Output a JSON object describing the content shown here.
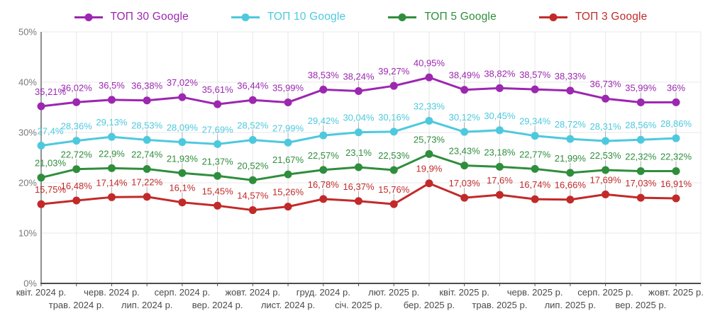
{
  "chart_data": {
    "type": "line",
    "title": "",
    "xlabel": "",
    "ylabel": "",
    "ylim": [
      0,
      50
    ],
    "grid": true,
    "legend_position": "top",
    "y_ticks": [
      "0%",
      "10%",
      "20%",
      "30%",
      "40%",
      "50%"
    ],
    "x": [
      "квіт. 2024 р.",
      "трав. 2024 р.",
      "черв. 2024 р.",
      "лип. 2024 р.",
      "серп. 2024 р.",
      "вер. 2024 р.",
      "жовт. 2024 р.",
      "лист. 2024 р.",
      "груд. 2024 р.",
      "січ. 2025 р.",
      "лют. 2025 р.",
      "бер. 2025 р.",
      "квіт. 2025 р.",
      "трав. 2025 р.",
      "черв. 2025 р.",
      "лип. 2025 р.",
      "серп. 2025 р.",
      "вер. 2025 р.",
      "жовт. 2025 р."
    ],
    "series": [
      {
        "name": "ТОП 30 Google",
        "color": "#9C27B0",
        "values": [
          35.21,
          36.02,
          36.5,
          36.38,
          37.02,
          35.61,
          36.44,
          35.99,
          38.53,
          38.24,
          39.27,
          40.95,
          38.49,
          38.82,
          38.57,
          38.33,
          36.73,
          35.99,
          36
        ],
        "labels": [
          "35,21%",
          "36,02%",
          "36,5%",
          "36,38%",
          "37,02%",
          "35,61%",
          "36,44%",
          "35,99%",
          "38,53%",
          "38,24%",
          "39,27%",
          "40,95%",
          "38,49%",
          "38,82%",
          "38,57%",
          "38,33%",
          "36,73%",
          "35,99%",
          "36%"
        ]
      },
      {
        "name": "ТОП 10 Google",
        "color": "#4DC9DE",
        "values": [
          27.4,
          28.36,
          29.13,
          28.53,
          28.09,
          27.69,
          28.52,
          27.99,
          29.42,
          30.04,
          30.16,
          32.33,
          30.12,
          30.45,
          29.34,
          28.72,
          28.31,
          28.56,
          28.86
        ],
        "labels": [
          "27,4%",
          "28,36%",
          "29,13%",
          "28,53%",
          "28,09%",
          "27,69%",
          "28,52%",
          "27,99%",
          "29,42%",
          "30,04%",
          "30,16%",
          "32,33%",
          "30,12%",
          "30,45%",
          "29,34%",
          "28,72%",
          "28,31%",
          "28,56%",
          "28,86%"
        ]
      },
      {
        "name": "ТОП 5 Google",
        "color": "#2F8E3C",
        "values": [
          21.03,
          22.72,
          22.9,
          22.74,
          21.93,
          21.37,
          20.52,
          21.67,
          22.57,
          23.1,
          22.53,
          25.73,
          23.43,
          23.18,
          22.77,
          21.99,
          22.53,
          22.32,
          22.32
        ],
        "labels": [
          "21,03%",
          "22,72%",
          "22,9%",
          "22,74%",
          "21,93%",
          "21,37%",
          "20,52%",
          "21,67%",
          "22,57%",
          "23,1%",
          "22,53%",
          "25,73%",
          "23,43%",
          "23,18%",
          "22,77%",
          "21,99%",
          "22,53%",
          "22,32%",
          "22,32%"
        ]
      },
      {
        "name": "ТОП 3 Google",
        "color": "#C22A2A",
        "values": [
          15.75,
          16.48,
          17.14,
          17.22,
          16.1,
          15.45,
          14.57,
          15.26,
          16.78,
          16.37,
          15.76,
          19.9,
          17.03,
          17.6,
          16.74,
          16.66,
          17.69,
          17.03,
          16.91
        ],
        "labels": [
          "15,75%",
          "16,48%",
          "17,14%",
          "17,22%",
          "16,1%",
          "15,45%",
          "14,57%",
          "15,26%",
          "16,78%",
          "16,37%",
          "15,76%",
          "19,9%",
          "17,03%",
          "17,6%",
          "16,74%",
          "16,66%",
          "17,69%",
          "17,03%",
          "16,91%"
        ]
      }
    ],
    "style_colors": {
      "grid": "#e8e8e8",
      "x_axis_line": "#4d4d4d",
      "y_axis_line": "#8f8f8f",
      "x_label": "#4a4a4a",
      "y_label": "#7a7a7a",
      "label_stem": "#b0b0b0"
    }
  }
}
